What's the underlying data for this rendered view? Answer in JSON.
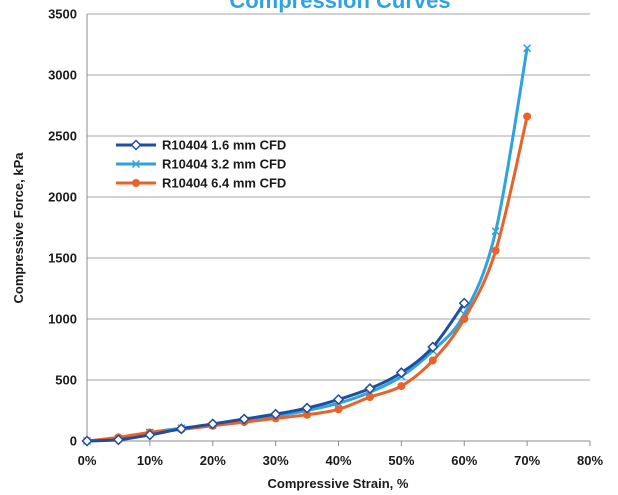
{
  "chart_data": {
    "type": "line",
    "title": "Compression Curves",
    "xlabel": "Compressive Strain, %",
    "ylabel": "Compressive Force, kPa",
    "xlim": [
      0,
      80
    ],
    "ylim": [
      0,
      3500
    ],
    "x_ticks": [
      "0%",
      "10%",
      "20%",
      "30%",
      "40%",
      "50%",
      "60%",
      "70%",
      "80%"
    ],
    "x_tick_values": [
      0,
      10,
      20,
      30,
      40,
      50,
      60,
      70,
      80
    ],
    "y_ticks": [
      "0",
      "500",
      "1000",
      "1500",
      "2000",
      "2500",
      "3000",
      "3500"
    ],
    "y_tick_values": [
      0,
      500,
      1000,
      1500,
      2000,
      2500,
      3000,
      3500
    ],
    "grid": "horizontal",
    "legend_position": "upper-left",
    "series": [
      {
        "name": "R10404 1.6 mm CFD",
        "color": "#1f4e9c",
        "marker": "diamond",
        "x": [
          0,
          5,
          10,
          15,
          20,
          25,
          30,
          35,
          40,
          45,
          50,
          55,
          60
        ],
        "y": [
          0,
          10,
          50,
          100,
          140,
          180,
          220,
          270,
          340,
          430,
          560,
          770,
          1130
        ]
      },
      {
        "name": "R10404 3.2 mm CFD",
        "color": "#2fa3df",
        "marker": "x",
        "x": [
          0,
          5,
          10,
          15,
          20,
          25,
          30,
          35,
          40,
          45,
          50,
          55,
          60,
          65,
          70
        ],
        "y": [
          0,
          20,
          70,
          105,
          130,
          170,
          205,
          250,
          310,
          400,
          530,
          740,
          1040,
          1720,
          3220
        ]
      },
      {
        "name": "R10404 6.4 mm CFD",
        "color": "#e8622a",
        "marker": "circle",
        "x": [
          0,
          5,
          10,
          15,
          20,
          25,
          30,
          35,
          40,
          45,
          50,
          55,
          60,
          65,
          70
        ],
        "y": [
          0,
          30,
          70,
          95,
          125,
          155,
          185,
          215,
          260,
          360,
          450,
          660,
          1000,
          1560,
          2660
        ]
      }
    ]
  }
}
